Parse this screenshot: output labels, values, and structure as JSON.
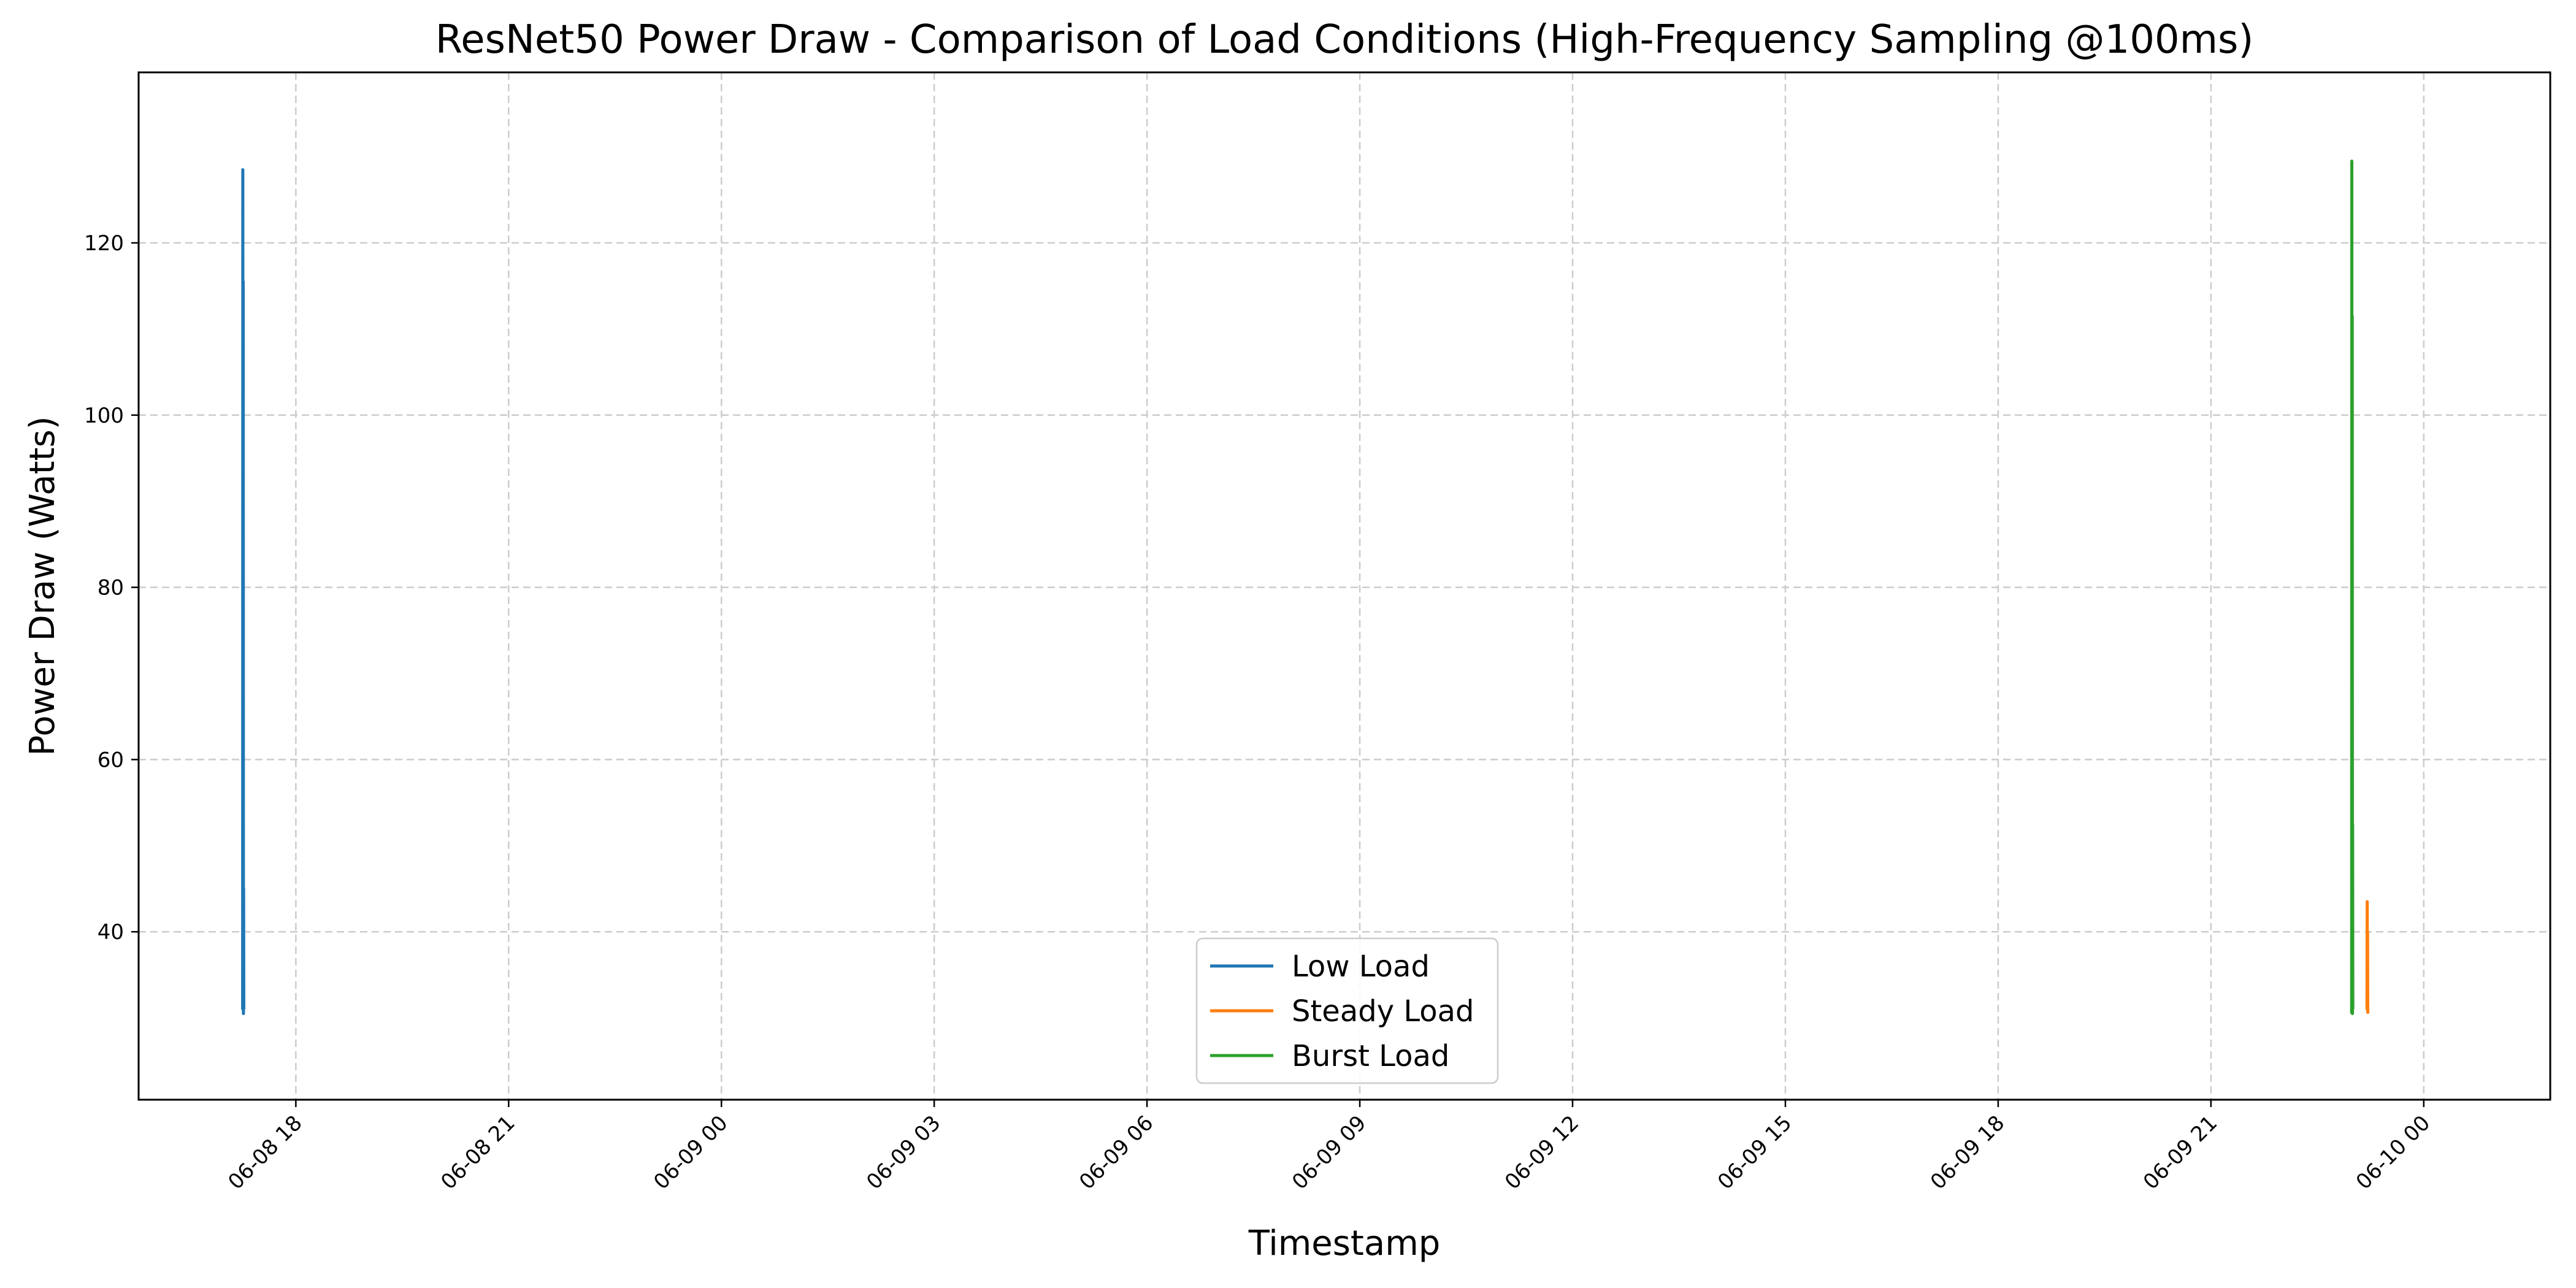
{
  "chart_data": {
    "type": "line",
    "title": "ResNet50 Power Draw - Comparison of Load Conditions (High-Frequency Sampling @100ms)",
    "xlabel": "Timestamp",
    "ylabel": "Power Draw (Watts)",
    "x_axis_type": "datetime",
    "xlim": [
      "2024-06-08 15:47",
      "2024-06-10 01:47"
    ],
    "ylim": [
      20.5,
      139.8
    ],
    "x_ticks": [
      "06-08 18",
      "06-08 21",
      "06-09 00",
      "06-09 03",
      "06-09 06",
      "06-09 09",
      "06-09 12",
      "06-09 15",
      "06-09 18",
      "06-09 21",
      "06-10 00"
    ],
    "y_ticks": [
      40,
      60,
      80,
      100,
      120
    ],
    "grid": true,
    "legend_position": "lower center",
    "series": [
      {
        "name": "Low Load",
        "color": "#1f77b4",
        "points": [
          {
            "x": "2024-06-08 17:15:00",
            "y": 31
          },
          {
            "x": "2024-06-08 17:15:10",
            "y": 128.5
          },
          {
            "x": "2024-06-08 17:15:20",
            "y": 31
          },
          {
            "x": "2024-06-08 17:15:30",
            "y": 115.5
          },
          {
            "x": "2024-06-08 17:15:40",
            "y": 30.5
          },
          {
            "x": "2024-06-08 17:15:50",
            "y": 45
          },
          {
            "x": "2024-06-08 17:16:00",
            "y": 31
          }
        ]
      },
      {
        "name": "Steady Load",
        "color": "#ff7f0e",
        "points": [
          {
            "x": "2024-06-09 23:12:00",
            "y": 31
          },
          {
            "x": "2024-06-09 23:12:10",
            "y": 43.5
          },
          {
            "x": "2024-06-09 23:12:20",
            "y": 31
          },
          {
            "x": "2024-06-09 23:12:30",
            "y": 40
          },
          {
            "x": "2024-06-09 23:12:40",
            "y": 30.5
          }
        ]
      },
      {
        "name": "Burst Load",
        "color": "#2ca02c",
        "points": [
          {
            "x": "2024-06-09 22:59:00",
            "y": 30.5
          },
          {
            "x": "2024-06-09 22:59:10",
            "y": 129.5
          },
          {
            "x": "2024-06-09 22:59:20",
            "y": 31
          },
          {
            "x": "2024-06-09 22:59:30",
            "y": 111.5
          },
          {
            "x": "2024-06-09 22:59:40",
            "y": 30.5
          },
          {
            "x": "2024-06-09 22:59:50",
            "y": 52.5
          },
          {
            "x": "2024-06-09 23:00:00",
            "y": 31
          }
        ]
      }
    ]
  }
}
